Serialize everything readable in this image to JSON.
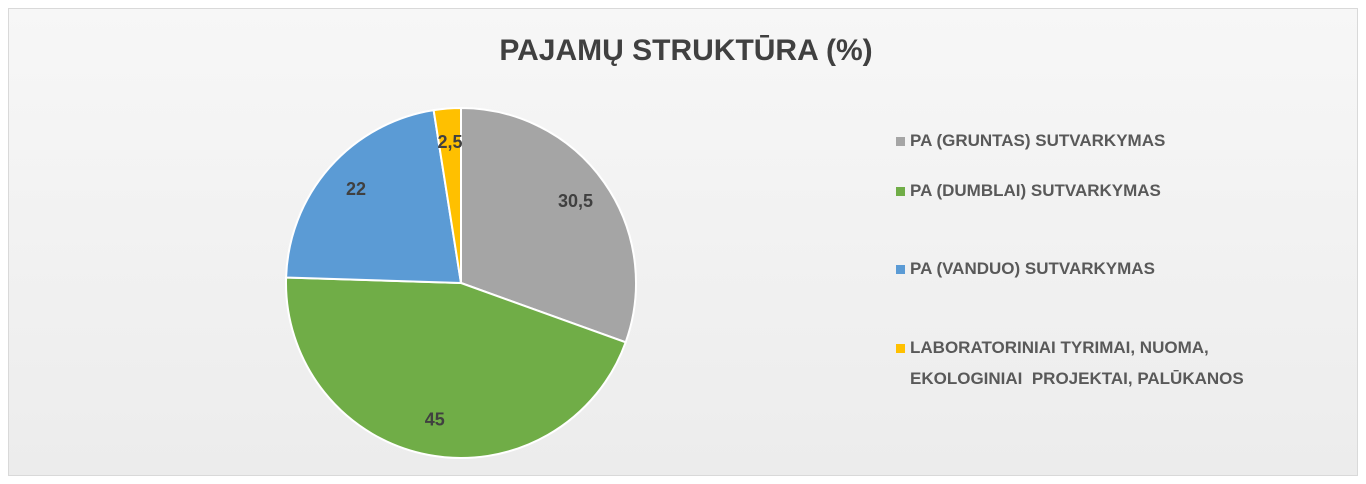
{
  "chart_data": {
    "type": "pie",
    "title": "PAJAMŲ STRUKTŪRA (%)",
    "categories": [
      "PA (GRUNTAS) SUTVARKYMAS",
      "PA (DUMBLAI) SUTVARKYMAS",
      "PA (VANDUO) SUTVARKYMAS",
      "LABORATORINIAI TYRIMAI, NUOMA, EKOLOGINIAI  PROJEKTAI, PALŪKANOS"
    ],
    "values": [
      30.5,
      45,
      22,
      2.5
    ],
    "value_labels": [
      "30,5",
      "45",
      "22",
      "2,5"
    ],
    "colors": [
      "#a5a5a5",
      "#70ad47",
      "#5b9bd5",
      "#ffc000"
    ],
    "legend": "right"
  }
}
